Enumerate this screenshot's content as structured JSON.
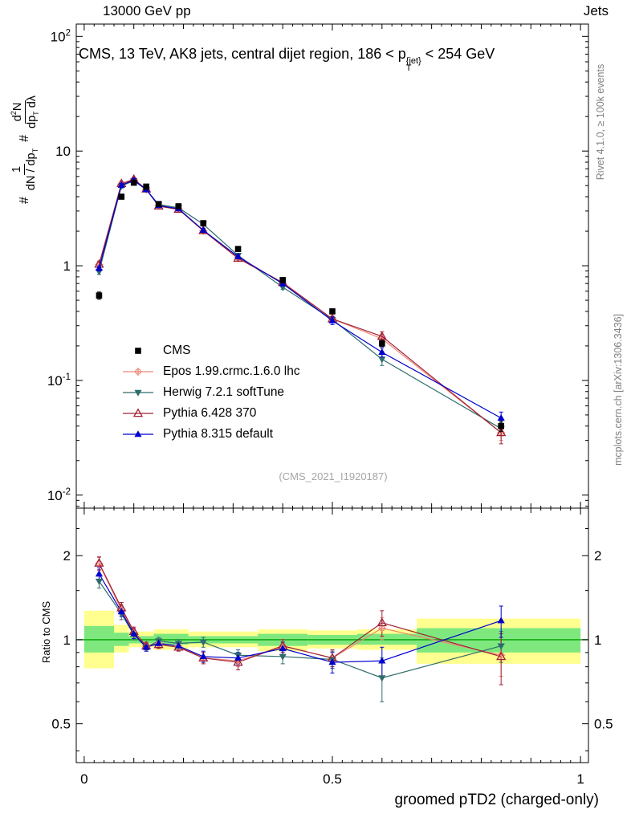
{
  "header": {
    "left": "13000 GeV pp",
    "right": "Jets"
  },
  "title": {
    "a": "CMS, 13 TeV, AK8 jets, central dijet region, 186 < p",
    "sup": "{jet}",
    "sub": "T",
    "b": " < 254 GeV"
  },
  "ylabel": {
    "hash1": "#",
    "frac1_num": "1",
    "frac1_den_a": "dN / dp",
    "frac1_den_sub": "T",
    "hash2": "#",
    "frac2_num_a": "d",
    "frac2_num_sup": "2",
    "frac2_num_b": "N",
    "frac2_den_a": "dp",
    "frac2_den_sub": "T",
    "frac2_den_b": " dλ"
  },
  "ratio_ylabel": "Ratio to CMS",
  "xlabel": "groomed pTD2 (charged-only)",
  "watermark": "(CMS_2021_I1920187)",
  "side": {
    "rivet": "Rivet 4.1.0, ≥ 100k events",
    "mcplots": "mcplots.cern.ch [arXiv:1306.3436]"
  },
  "chart_data": {
    "type": "line",
    "x": [
      0.03,
      0.075,
      0.1,
      0.125,
      0.15,
      0.19,
      0.24,
      0.31,
      0.4,
      0.5,
      0.6,
      0.84
    ],
    "xlim": [
      -0.016,
      1.016
    ],
    "xticks": [
      {
        "v": 0,
        "label": "0"
      },
      {
        "v": 0.5,
        "label": "0.5"
      },
      {
        "v": 1,
        "label": "1"
      }
    ],
    "main_ylog": true,
    "main_ylim": [
      0.0077,
      128
    ],
    "main_yticks": [
      {
        "v": 100,
        "base": "10",
        "exp": "2"
      },
      {
        "v": 10,
        "base": "10",
        "exp": ""
      },
      {
        "v": 1,
        "base": "1",
        "exp": ""
      },
      {
        "v": 0.1,
        "base": "10",
        "exp": "-1"
      },
      {
        "v": 0.01,
        "base": "10",
        "exp": "-2"
      }
    ],
    "ratio_ylog": true,
    "ratio_ylim": [
      0.363,
      2.96
    ],
    "ratio_yticks": [
      {
        "v": 2,
        "label": "2"
      },
      {
        "v": 1,
        "label": "1"
      },
      {
        "v": 0.5,
        "label": "0.5"
      }
    ],
    "ratio_minor_yticks": [
      0.4,
      0.6,
      0.7,
      0.8,
      0.9,
      1.5,
      2.5
    ],
    "series": [
      {
        "key": "cms",
        "label": "CMS",
        "color": "#000000",
        "marker": "square",
        "draw_line": false,
        "y": [
          0.55,
          4.0,
          5.3,
          4.9,
          3.45,
          3.3,
          2.35,
          1.4,
          0.75,
          0.4,
          0.21,
          0.04
        ],
        "yerr": [
          0.04,
          0.18,
          0.22,
          0.2,
          0.15,
          0.14,
          0.1,
          0.06,
          0.035,
          0.02,
          0.013,
          0.004
        ]
      },
      {
        "key": "epos",
        "label": "Epos 1.99.crmc.1.6.0 lhc",
        "color": "#ee8575",
        "marker": "circle-cross",
        "draw_line": true,
        "y": [
          1.03,
          5.12,
          5.62,
          4.66,
          3.35,
          3.14,
          2.02,
          1.18,
          0.71,
          0.344,
          0.231,
          0.035
        ],
        "yerr": [
          0.06,
          0.22,
          0.2,
          0.14,
          0.1,
          0.09,
          0.08,
          0.05,
          0.035,
          0.02,
          0.02,
          0.005
        ],
        "ratio": [
          1.87,
          1.28,
          1.06,
          0.95,
          0.97,
          0.95,
          0.86,
          0.84,
          0.95,
          0.86,
          1.1,
          0.88
        ],
        "ratio_err": [
          0.1,
          0.06,
          0.04,
          0.03,
          0.03,
          0.03,
          0.04,
          0.04,
          0.05,
          0.06,
          0.1,
          0.14
        ]
      },
      {
        "key": "herwig",
        "label": "Herwig 7.2.1 softTune",
        "color": "#2e6c6c",
        "marker": "triangle-down",
        "draw_line": true,
        "y": [
          0.89,
          4.96,
          5.51,
          4.61,
          3.42,
          3.2,
          2.3,
          1.23,
          0.65,
          0.34,
          0.153,
          0.038
        ],
        "yerr": [
          0.05,
          0.22,
          0.2,
          0.14,
          0.1,
          0.09,
          0.09,
          0.05,
          0.03,
          0.02,
          0.018,
          0.005
        ],
        "ratio": [
          1.62,
          1.24,
          1.04,
          0.94,
          0.99,
          0.97,
          0.98,
          0.88,
          0.87,
          0.85,
          0.73,
          0.95
        ],
        "ratio_err": [
          0.09,
          0.06,
          0.04,
          0.03,
          0.03,
          0.03,
          0.04,
          0.04,
          0.05,
          0.06,
          0.13,
          0.12
        ]
      },
      {
        "key": "pythia6",
        "label": "Pythia 6.428 370",
        "color": "#a02035",
        "marker": "triangle-up-open",
        "draw_line": true,
        "y": [
          1.03,
          5.2,
          5.67,
          4.66,
          3.31,
          3.1,
          2.02,
          1.16,
          0.713,
          0.344,
          0.242,
          0.035
        ],
        "yerr": [
          0.06,
          0.22,
          0.2,
          0.14,
          0.1,
          0.09,
          0.08,
          0.06,
          0.035,
          0.02,
          0.024,
          0.007
        ],
        "ratio": [
          1.88,
          1.3,
          1.07,
          0.95,
          0.96,
          0.94,
          0.86,
          0.83,
          0.95,
          0.86,
          1.15,
          0.87
        ],
        "ratio_err": [
          0.1,
          0.06,
          0.04,
          0.03,
          0.03,
          0.03,
          0.04,
          0.05,
          0.05,
          0.06,
          0.12,
          0.18
        ]
      },
      {
        "key": "pythia8",
        "label": "Pythia 8.315 default",
        "color": "#0000cd",
        "marker": "triangle-up",
        "draw_line": true,
        "y": [
          0.95,
          5.04,
          5.57,
          4.61,
          3.35,
          3.14,
          2.04,
          1.2,
          0.698,
          0.332,
          0.176,
          0.047
        ],
        "yerr": [
          0.05,
          0.2,
          0.2,
          0.14,
          0.1,
          0.09,
          0.08,
          0.05,
          0.033,
          0.025,
          0.016,
          0.006
        ],
        "ratio": [
          1.72,
          1.26,
          1.05,
          0.94,
          0.97,
          0.95,
          0.87,
          0.86,
          0.93,
          0.83,
          0.84,
          1.17
        ],
        "ratio_err": [
          0.09,
          0.05,
          0.04,
          0.03,
          0.03,
          0.03,
          0.04,
          0.04,
          0.05,
          0.07,
          0.1,
          0.15
        ]
      }
    ],
    "bands": {
      "unity_line_color": "#00a000",
      "yellow": {
        "color": "#ffff8f",
        "segments": [
          [
            0.0,
            0.06,
            0.79,
            1.27
          ],
          [
            0.06,
            0.09,
            0.9,
            1.13
          ],
          [
            0.09,
            0.14,
            0.94,
            1.07
          ],
          [
            0.14,
            0.21,
            0.92,
            1.09
          ],
          [
            0.21,
            0.35,
            0.94,
            1.07
          ],
          [
            0.35,
            0.45,
            0.91,
            1.09
          ],
          [
            0.45,
            0.55,
            0.93,
            1.08
          ],
          [
            0.55,
            0.67,
            0.92,
            1.09
          ],
          [
            0.67,
            1.0,
            0.82,
            1.19
          ]
        ]
      },
      "green": {
        "color": "#7ee87e",
        "segments": [
          [
            0.0,
            0.06,
            0.9,
            1.12
          ],
          [
            0.06,
            0.09,
            0.95,
            1.06
          ],
          [
            0.09,
            0.14,
            0.97,
            1.03
          ],
          [
            0.14,
            0.21,
            0.96,
            1.05
          ],
          [
            0.21,
            0.35,
            0.97,
            1.03
          ],
          [
            0.35,
            0.45,
            0.95,
            1.05
          ],
          [
            0.45,
            0.55,
            0.96,
            1.04
          ],
          [
            0.55,
            0.67,
            0.96,
            1.05
          ],
          [
            0.67,
            1.0,
            0.9,
            1.1
          ]
        ]
      }
    }
  }
}
